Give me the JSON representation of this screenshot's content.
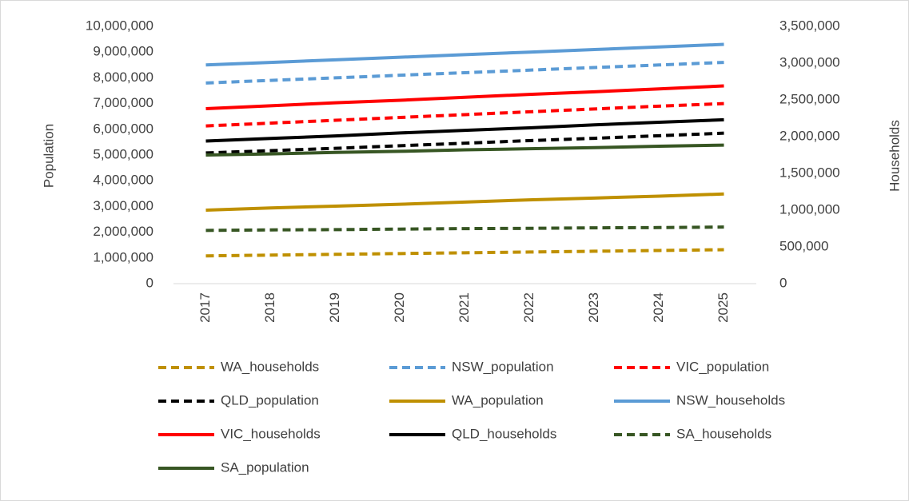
{
  "chart_data": {
    "type": "line",
    "y_label": "Population",
    "y2_label": "Households",
    "categories": [
      "2017",
      "2018",
      "2019",
      "2020",
      "2021",
      "2022",
      "2023",
      "2024",
      "2025"
    ],
    "ylim": [
      0,
      10000000
    ],
    "yticks": [
      0,
      {
        "value": 1000000,
        "label": "1,000,000"
      },
      {
        "value": 2000000,
        "label": "2,000,000"
      },
      {
        "value": 3000000,
        "label": "3,000,000"
      },
      {
        "value": 4000000,
        "label": "4,000,000"
      },
      {
        "value": 5000000,
        "label": "5,000,000"
      },
      {
        "value": 6000000,
        "label": "6,000,000"
      },
      {
        "value": 7000000,
        "label": "7,000,000"
      },
      {
        "value": 8000000,
        "label": "8,000,000"
      },
      {
        "value": 9000000,
        "label": "9,000,000"
      },
      {
        "value": 10000000,
        "label": "10,000,000"
      }
    ],
    "y2lim": [
      0,
      3500000
    ],
    "y2ticks": [
      0,
      {
        "value": 500000,
        "label": "500,000"
      },
      {
        "value": 1000000,
        "label": "1,000,000"
      },
      {
        "value": 1500000,
        "label": "1,500,000"
      },
      {
        "value": 2000000,
        "label": "2,000,000"
      },
      {
        "value": 2500000,
        "label": "2,500,000"
      },
      {
        "value": 3000000,
        "label": "3,000,000"
      },
      {
        "value": 3500000,
        "label": "3,500,000"
      }
    ],
    "grid": false,
    "legend": "bottom",
    "series": [
      {
        "name": "WA_households",
        "color": "#bf9000",
        "style": "dashed",
        "axis": "y",
        "values": [
          1080000,
          1110000,
          1140000,
          1170000,
          1200000,
          1230000,
          1260000,
          1290000,
          1320000
        ]
      },
      {
        "name": "NSW_population",
        "color": "#5b9bd5",
        "style": "dashed",
        "axis": "y",
        "values": [
          7800000,
          7900000,
          8000000,
          8100000,
          8200000,
          8300000,
          8400000,
          8500000,
          8600000
        ]
      },
      {
        "name": "VIC_population",
        "color": "#ff0000",
        "style": "dashed",
        "axis": "y",
        "values": [
          6130000,
          6240000,
          6350000,
          6460000,
          6570000,
          6680000,
          6790000,
          6900000,
          7000000
        ]
      },
      {
        "name": "QLD_population",
        "color": "#000000",
        "style": "dashed",
        "axis": "y",
        "values": [
          5080000,
          5170000,
          5260000,
          5360000,
          5460000,
          5560000,
          5650000,
          5750000,
          5850000
        ]
      },
      {
        "name": "WA_population",
        "color": "#bf9000",
        "style": "solid",
        "axis": "y2",
        "values": [
          1000000,
          1030000,
          1055000,
          1080000,
          1110000,
          1140000,
          1165000,
          1190000,
          1220000
        ]
      },
      {
        "name": "NSW_households",
        "color": "#5b9bd5",
        "style": "solid",
        "axis": "y2",
        "values": [
          2975000,
          3010000,
          3045000,
          3080000,
          3115000,
          3150000,
          3185000,
          3220000,
          3255000
        ]
      },
      {
        "name": "VIC_households",
        "color": "#ff0000",
        "style": "solid",
        "axis": "y2",
        "values": [
          2380000,
          2420000,
          2460000,
          2495000,
          2535000,
          2575000,
          2610000,
          2650000,
          2690000
        ]
      },
      {
        "name": "QLD_households",
        "color": "#000000",
        "style": "solid",
        "axis": "y2",
        "values": [
          1940000,
          1975000,
          2010000,
          2050000,
          2085000,
          2120000,
          2160000,
          2195000,
          2230000
        ]
      },
      {
        "name": "SA_households",
        "color": "#375623",
        "style": "dashed",
        "axis": "y",
        "values": [
          2070000,
          2090000,
          2100000,
          2120000,
          2140000,
          2150000,
          2170000,
          2180000,
          2200000
        ]
      },
      {
        "name": "SA_population",
        "color": "#375623",
        "style": "solid",
        "axis": "y2",
        "values": [
          1750000,
          1765000,
          1785000,
          1800000,
          1820000,
          1835000,
          1850000,
          1870000,
          1885000
        ]
      }
    ]
  }
}
